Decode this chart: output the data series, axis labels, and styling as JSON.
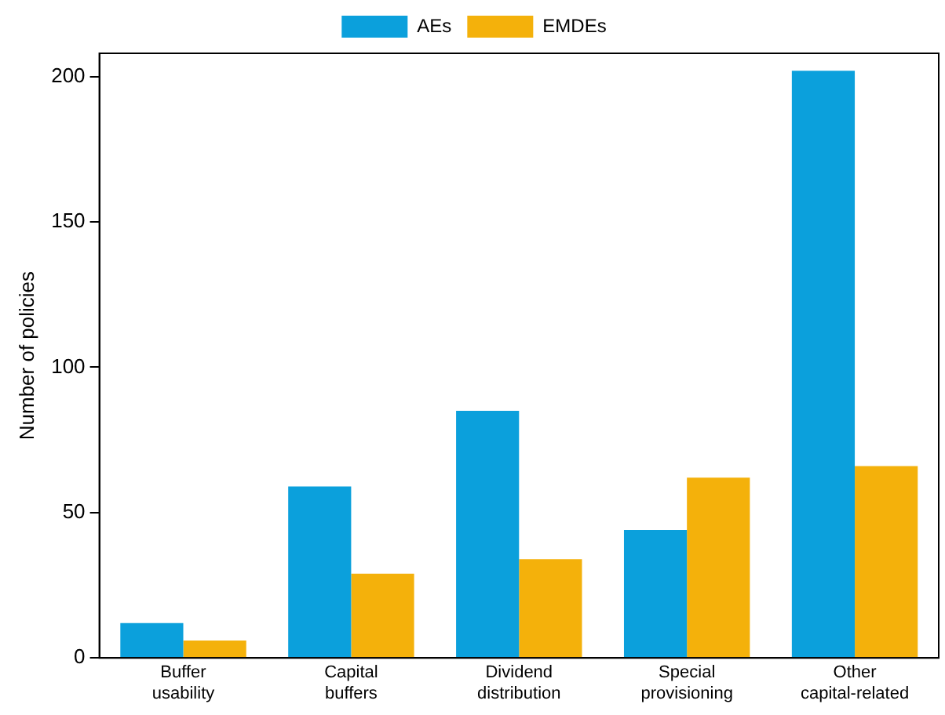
{
  "chart_data": {
    "type": "bar",
    "ylabel": "Number of policies",
    "categories": [
      "Buffer usability",
      "Capital buffers",
      "Dividend distribution",
      "Special provisioning",
      "Other capital-related"
    ],
    "series": [
      {
        "name": "AEs",
        "color": "#0ba0dc",
        "values": [
          12,
          59,
          85,
          44,
          202
        ]
      },
      {
        "name": "EMDEs",
        "color": "#f4b10b",
        "values": [
          6,
          29,
          34,
          62,
          66
        ]
      }
    ],
    "ylim": [
      0,
      208
    ],
    "yticks": [
      0,
      50,
      100,
      150,
      200
    ],
    "grid": false,
    "legend": "top"
  }
}
